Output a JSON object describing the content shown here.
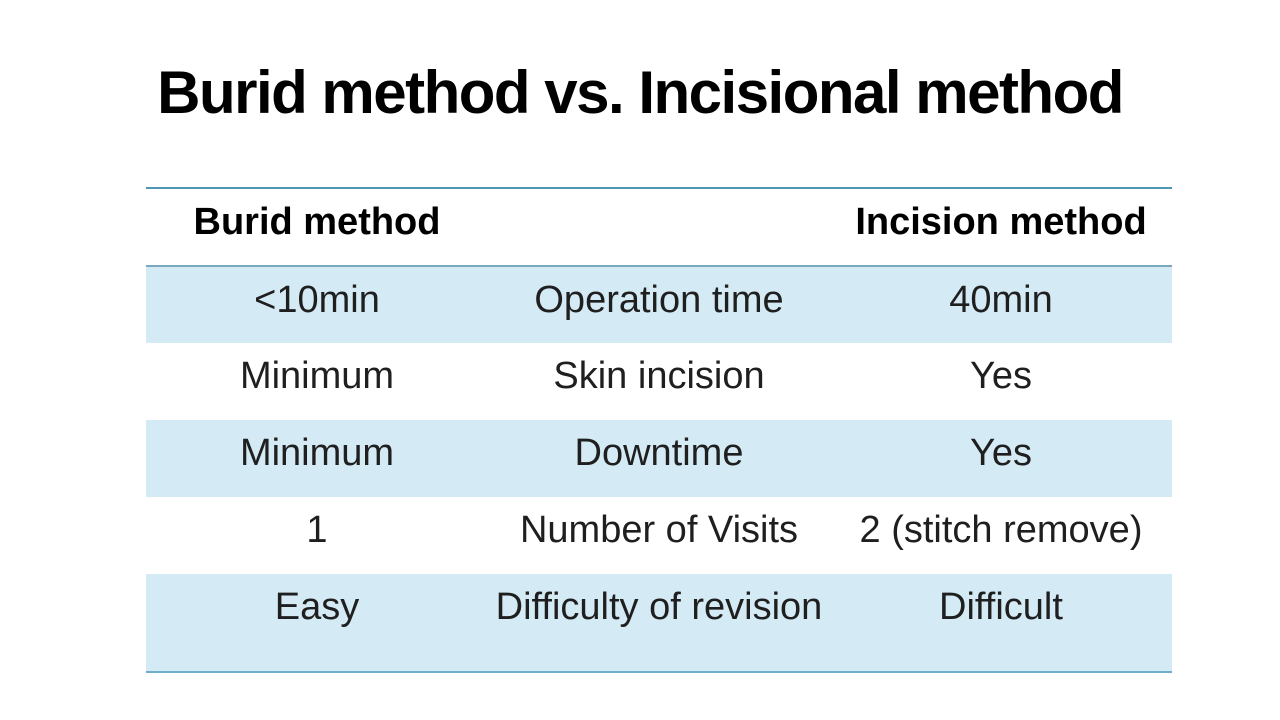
{
  "slide": {
    "title": "Burid method vs. Incisional method",
    "background_color": "#ffffff",
    "text_color": "#1f1f1f"
  },
  "table": {
    "columns": [
      {
        "header": "Burid method"
      },
      {
        "header": ""
      },
      {
        "header": "Incision method"
      }
    ],
    "rows": [
      {
        "burid": "<10min",
        "attribute": "Operation time",
        "incision": "40min"
      },
      {
        "burid": "Minimum",
        "attribute": "Skin incision",
        "incision": "Yes"
      },
      {
        "burid": "Minimum",
        "attribute": "Downtime",
        "incision": "Yes"
      },
      {
        "burid": "1",
        "attribute": "Number of Visits",
        "incision": "2 (stitch remove)"
      },
      {
        "burid": "Easy",
        "attribute": "Difficulty of revision",
        "incision": "Difficult"
      }
    ],
    "colors": {
      "row_highlight": "#d4eaf5",
      "border_top": "#4f97b5",
      "border_header": "#7aa9be",
      "border_bottom": "#6fadca"
    }
  }
}
